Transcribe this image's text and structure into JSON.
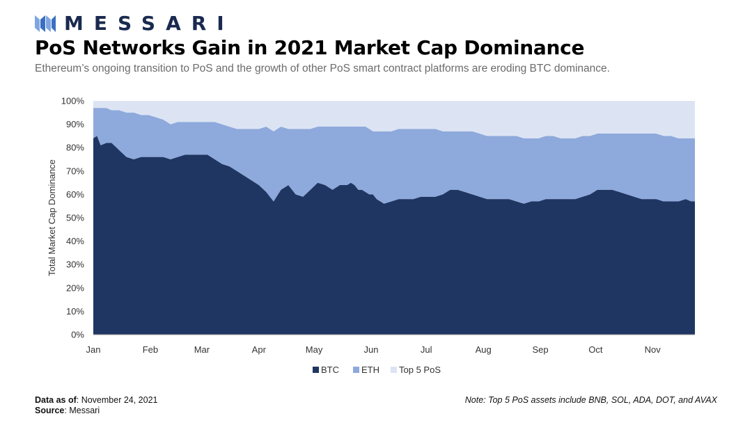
{
  "brand": {
    "name": "MESSARI"
  },
  "header": {
    "title": "PoS Networks Gain in 2021 Market Cap Dominance",
    "subtitle": "Ethereum’s ongoing transition to PoS and the growth of other PoS smart contract platforms are eroding BTC dominance."
  },
  "footer": {
    "data_as_of_label": "Data as of",
    "data_as_of_value": ": November 24, 2021",
    "source_label": "Source",
    "source_value": ": Messari",
    "note": "Note: Top 5 PoS assets include BNB, SOL, ADA, DOT, and AVAX"
  },
  "colors": {
    "btc": "#1f3663",
    "eth": "#8ea9db",
    "pos": "#dce4f3",
    "brand": "#3a6fc4"
  },
  "chart_data": {
    "type": "area",
    "stacked": true,
    "ylabel": "Total Market Cap Dominance",
    "ylim": [
      0,
      100
    ],
    "yticks": [
      "0%",
      "10%",
      "20%",
      "30%",
      "40%",
      "50%",
      "60%",
      "70%",
      "80%",
      "90%",
      "100%"
    ],
    "xlim": [
      0,
      327
    ],
    "xticks": [
      {
        "label": "Jan",
        "x": 0
      },
      {
        "label": "Feb",
        "x": 31
      },
      {
        "label": "Mar",
        "x": 59
      },
      {
        "label": "Apr",
        "x": 90
      },
      {
        "label": "May",
        "x": 120
      },
      {
        "label": "Jun",
        "x": 151
      },
      {
        "label": "Jul",
        "x": 181
      },
      {
        "label": "Aug",
        "x": 212
      },
      {
        "label": "Sep",
        "x": 243
      },
      {
        "label": "Oct",
        "x": 273
      },
      {
        "label": "Nov",
        "x": 304
      }
    ],
    "x": [
      0,
      2,
      4,
      7,
      10,
      14,
      18,
      22,
      26,
      30,
      34,
      38,
      42,
      46,
      50,
      54,
      58,
      62,
      66,
      70,
      74,
      78,
      82,
      86,
      90,
      94,
      98,
      102,
      106,
      110,
      114,
      118,
      122,
      126,
      130,
      134,
      136,
      138,
      140,
      142,
      144,
      146,
      148,
      150,
      152,
      154,
      158,
      162,
      166,
      170,
      174,
      178,
      182,
      186,
      190,
      194,
      198,
      202,
      206,
      210,
      214,
      218,
      222,
      226,
      230,
      234,
      238,
      242,
      246,
      250,
      254,
      258,
      262,
      266,
      270,
      274,
      278,
      282,
      286,
      290,
      294,
      298,
      302,
      306,
      310,
      314,
      318,
      322,
      325,
      327
    ],
    "series": [
      {
        "name": "BTC",
        "values": [
          84,
          85,
          81,
          82,
          82,
          79,
          76,
          75,
          76,
          76,
          76,
          76,
          75,
          76,
          77,
          77,
          77,
          77,
          75,
          73,
          72,
          70,
          68,
          66,
          64,
          61,
          57,
          62,
          64,
          60,
          59,
          62,
          65,
          64,
          62,
          64,
          64,
          64,
          65,
          64,
          62,
          62,
          61,
          60,
          60,
          58,
          56,
          57,
          58,
          58,
          58,
          59,
          59,
          59,
          60,
          62,
          62,
          61,
          60,
          59,
          58,
          58,
          58,
          58,
          57,
          56,
          57,
          57,
          58,
          58,
          58,
          58,
          58,
          59,
          60,
          62,
          62,
          62,
          61,
          60,
          59,
          58,
          58,
          58,
          57,
          57,
          57,
          58,
          57,
          57
        ]
      },
      {
        "name": "ETH",
        "values": [
          13,
          12,
          16,
          15,
          14,
          17,
          19,
          20,
          18,
          18,
          17,
          16,
          15,
          15,
          14,
          14,
          14,
          14,
          16,
          17,
          17,
          18,
          20,
          22,
          24,
          28,
          30,
          27,
          24,
          28,
          29,
          26,
          24,
          25,
          27,
          25,
          25,
          25,
          24,
          25,
          27,
          27,
          28,
          28,
          27,
          29,
          31,
          30,
          30,
          30,
          30,
          29,
          29,
          29,
          27,
          25,
          25,
          26,
          27,
          27,
          27,
          27,
          27,
          27,
          28,
          28,
          27,
          27,
          27,
          27,
          26,
          26,
          26,
          26,
          25,
          24,
          24,
          24,
          25,
          26,
          27,
          28,
          28,
          28,
          28,
          28,
          27,
          26,
          27,
          27
        ]
      },
      {
        "name": "Top 5 PoS",
        "values": [
          3,
          3,
          3,
          3,
          4,
          4,
          5,
          5,
          6,
          6,
          7,
          8,
          10,
          9,
          9,
          9,
          9,
          9,
          9,
          10,
          11,
          12,
          12,
          12,
          12,
          11,
          13,
          11,
          12,
          12,
          12,
          12,
          11,
          11,
          11,
          11,
          11,
          11,
          11,
          11,
          11,
          11,
          11,
          12,
          13,
          13,
          13,
          13,
          12,
          12,
          12,
          12,
          12,
          12,
          13,
          13,
          13,
          13,
          13,
          14,
          15,
          15,
          15,
          15,
          15,
          16,
          16,
          16,
          15,
          15,
          16,
          16,
          16,
          15,
          15,
          14,
          14,
          14,
          14,
          14,
          14,
          14,
          14,
          14,
          15,
          15,
          16,
          16,
          16,
          16
        ]
      }
    ],
    "legend_position": "bottom-center"
  }
}
